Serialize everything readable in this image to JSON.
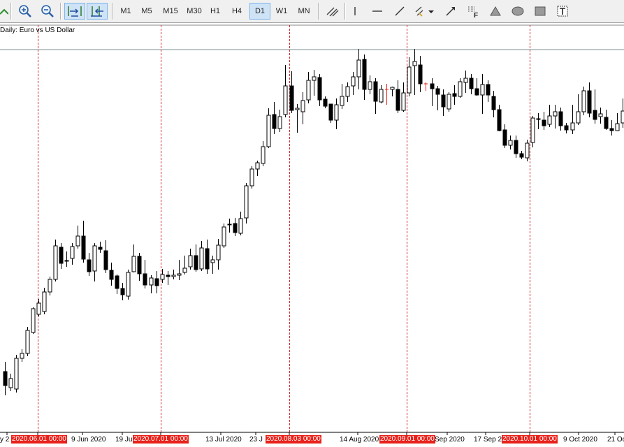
{
  "toolbar": {
    "timeframes": [
      "M1",
      "M5",
      "M15",
      "M30",
      "H1",
      "H4",
      "D1",
      "W1",
      "MN"
    ],
    "active_timeframe": "D1"
  },
  "chart": {
    "title": "Daily:  Euro vs US Dollar",
    "date_labels": [
      {
        "text": "y 2",
        "highlight": false
      },
      {
        "text": "2020.06.01 00:00",
        "highlight": true
      },
      {
        "text": "9 Jun 2020",
        "highlight": false
      },
      {
        "text": "19 Jun",
        "highlight": false
      },
      {
        "text": "2020.07.01 00:00",
        "highlight": true
      },
      {
        "text": "13 Jul 2020",
        "highlight": false
      },
      {
        "text": "23 J",
        "highlight": false
      },
      {
        "text": "2020.08.03 00:00",
        "highlight": true
      },
      {
        "text": "14 Aug 2020",
        "highlight": false
      },
      {
        "text": "2020.09.01 00:00",
        "highlight": true
      },
      {
        "text": "Sep 2020",
        "highlight": false
      },
      {
        "text": "17 Sep 2",
        "highlight": false
      },
      {
        "text": "2020.10.01 00:00",
        "highlight": true
      },
      {
        "text": "9 Oct 2020",
        "highlight": false
      },
      {
        "text": "21 Oc",
        "highlight": false
      }
    ]
  },
  "chart_data": {
    "type": "candlestick",
    "series": "EURUSD Daily",
    "bullish_fill": "#ffffff",
    "bearish_fill": "#000000",
    "doji_color": "#e8211a",
    "separator_color": "#d4262d",
    "candles": [
      [
        532,
        552,
        518,
        566
      ],
      [
        555,
        542,
        535,
        560
      ],
      [
        557,
        513,
        508,
        562
      ],
      [
        513,
        506,
        500,
        518
      ],
      [
        506,
        473,
        468,
        510
      ],
      [
        476,
        442,
        440,
        478
      ],
      [
        450,
        434,
        428,
        453
      ],
      [
        446,
        418,
        412,
        450
      ],
      [
        418,
        400,
        396,
        423
      ],
      [
        400,
        352,
        343,
        403
      ],
      [
        354,
        377,
        348,
        385
      ],
      [
        373,
        374,
        360,
        382
      ],
      [
        370,
        353,
        348,
        379
      ],
      [
        352,
        338,
        323,
        356
      ],
      [
        338,
        371,
        316,
        376
      ],
      [
        372,
        389,
        362,
        395
      ],
      [
        388,
        352,
        348,
        403
      ],
      [
        354,
        357,
        346,
        362
      ],
      [
        359,
        386,
        344,
        391
      ],
      [
        387,
        400,
        376,
        409
      ],
      [
        395,
        413,
        393,
        421
      ],
      [
        413,
        422,
        405,
        430
      ],
      [
        424,
        390,
        386,
        429
      ],
      [
        389,
        367,
        350,
        390
      ],
      [
        367,
        392,
        362,
        402
      ],
      [
        392,
        408,
        372,
        413
      ],
      [
        408,
        398,
        394,
        420
      ],
      [
        399,
        409,
        388,
        420
      ],
      [
        400,
        393,
        385,
        405
      ],
      [
        394,
        396,
        388,
        408
      ],
      [
        396,
        394,
        386,
        400
      ],
      [
        394,
        392,
        372,
        401
      ],
      [
        390,
        384,
        366,
        393
      ],
      [
        382,
        366,
        356,
        386
      ],
      [
        366,
        386,
        350,
        389
      ],
      [
        385,
        355,
        345,
        388
      ],
      [
        356,
        385,
        343,
        392
      ],
      [
        376,
        372,
        366,
        392
      ],
      [
        372,
        351,
        342,
        386
      ],
      [
        352,
        325,
        320,
        355
      ],
      [
        322,
        321,
        313,
        333
      ],
      [
        320,
        333,
        312,
        338
      ],
      [
        334,
        313,
        303,
        337
      ],
      [
        312,
        266,
        262,
        320
      ],
      [
        266,
        242,
        238,
        270
      ],
      [
        242,
        233,
        230,
        252
      ],
      [
        234,
        210,
        202,
        238
      ],
      [
        210,
        165,
        155,
        212
      ],
      [
        164,
        184,
        146,
        192
      ],
      [
        184,
        167,
        157,
        189
      ],
      [
        164,
        123,
        93,
        168
      ],
      [
        123,
        158,
        102,
        162
      ],
      [
        157,
        155,
        149,
        190
      ],
      [
        160,
        144,
        132,
        178
      ],
      [
        143,
        115,
        103,
        148
      ],
      [
        115,
        110,
        100,
        137
      ],
      [
        111,
        143,
        106,
        152
      ],
      [
        142,
        152,
        138,
        155
      ],
      [
        149,
        172,
        149,
        176
      ],
      [
        172,
        150,
        141,
        185
      ],
      [
        151,
        138,
        120,
        156
      ],
      [
        138,
        124,
        118,
        146
      ],
      [
        123,
        110,
        103,
        136
      ],
      [
        110,
        86,
        70,
        128
      ],
      [
        85,
        128,
        78,
        143
      ],
      [
        128,
        117,
        108,
        135
      ],
      [
        117,
        145,
        112,
        163
      ],
      [
        146,
        128,
        122,
        148
      ],
      [
        128,
        128,
        120,
        150
      ],
      [
        128,
        125,
        124,
        138
      ],
      [
        128,
        158,
        115,
        162
      ],
      [
        158,
        133,
        118,
        160
      ],
      [
        133,
        96,
        82,
        138
      ],
      [
        94,
        88,
        70,
        136
      ],
      [
        93,
        120,
        80,
        132
      ],
      [
        120,
        120,
        118,
        130
      ],
      [
        120,
        127,
        112,
        152
      ],
      [
        127,
        135,
        123,
        158
      ],
      [
        136,
        153,
        128,
        166
      ],
      [
        156,
        135,
        132,
        160
      ],
      [
        134,
        138,
        122,
        150
      ],
      [
        138,
        117,
        112,
        140
      ],
      [
        118,
        112,
        101,
        133
      ],
      [
        112,
        127,
        106,
        135
      ],
      [
        127,
        136,
        112,
        137
      ],
      [
        136,
        121,
        106,
        163
      ],
      [
        121,
        136,
        115,
        146
      ],
      [
        138,
        157,
        130,
        168
      ],
      [
        157,
        187,
        150,
        188
      ],
      [
        186,
        208,
        178,
        212
      ],
      [
        208,
        201,
        194,
        214
      ],
      [
        201,
        220,
        194,
        226
      ],
      [
        220,
        225,
        216,
        228
      ],
      [
        226,
        205,
        200,
        231
      ],
      [
        204,
        169,
        166,
        211
      ],
      [
        170,
        171,
        162,
        185
      ],
      [
        172,
        180,
        160,
        186
      ],
      [
        178,
        166,
        150,
        182
      ],
      [
        166,
        160,
        150,
        184
      ],
      [
        160,
        180,
        154,
        187
      ],
      [
        180,
        186,
        176,
        191
      ],
      [
        186,
        176,
        150,
        192
      ],
      [
        176,
        160,
        135,
        179
      ],
      [
        160,
        130,
        124,
        165
      ],
      [
        130,
        162,
        118,
        168
      ],
      [
        158,
        171,
        128,
        177
      ],
      [
        167,
        163,
        154,
        177
      ],
      [
        168,
        184,
        157,
        186
      ],
      [
        184,
        187,
        172,
        194
      ],
      [
        187,
        177,
        162,
        187
      ],
      [
        176,
        159,
        141,
        183
      ],
      [
        158,
        128,
        115,
        160
      ],
      [
        128,
        120,
        110,
        135
      ],
      [
        122,
        140,
        110,
        148
      ]
    ],
    "separators_x": [
      54,
      230,
      414,
      582,
      758
    ]
  }
}
